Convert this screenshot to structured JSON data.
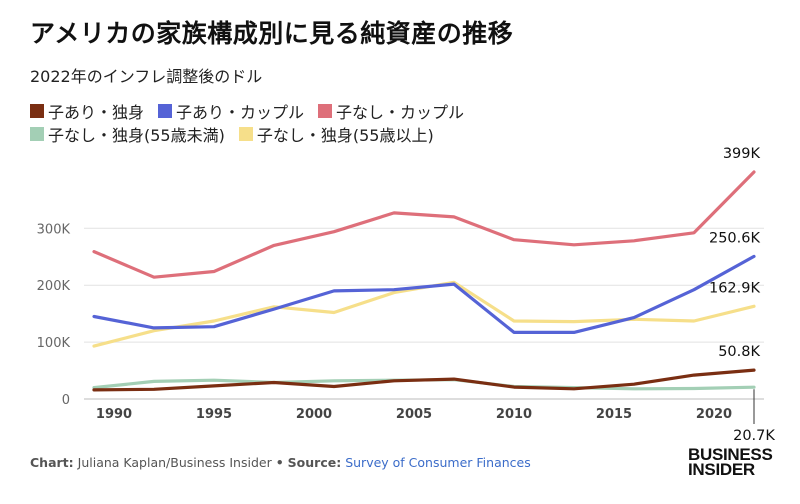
{
  "title": "アメリカの家族構成別に見る純資産の推移",
  "subtitle": "2022年のインフレ調整後のドル",
  "legend": [
    {
      "label": "子あり・独身",
      "color": "#7a2e12"
    },
    {
      "label": "子あり・カップル",
      "color": "#5563d6"
    },
    {
      "label": "子なし・カップル",
      "color": "#de6f7a"
    },
    {
      "label": "子なし・独身(55歳未満)",
      "color": "#a3cfb5"
    },
    {
      "label": "子なし・独身(55歳以上)",
      "color": "#f6df8a"
    }
  ],
  "chart_data": {
    "type": "line",
    "title": "アメリカの家族構成別に見る純資産の推移",
    "subtitle": "2022年のインフレ調整後のドル",
    "xlabel": "",
    "ylabel": "",
    "x": [
      1989,
      1992,
      1995,
      1998,
      2001,
      2004,
      2007,
      2010,
      2013,
      2016,
      2019,
      2022
    ],
    "xticks": [
      1990,
      1995,
      2000,
      2005,
      2010,
      2015,
      2020
    ],
    "xlim": [
      1988.5,
      2022.5
    ],
    "ylim": [
      0,
      420000
    ],
    "yticks": [
      0,
      100000,
      200000,
      300000
    ],
    "ytick_labels": [
      "0",
      "100K",
      "200K",
      "300K"
    ],
    "series": [
      {
        "name": "子なし・独身(55歳未満)",
        "color": "#a3cfb5",
        "values": [
          20000,
          31000,
          33000,
          29000,
          32000,
          33000,
          34000,
          22000,
          20000,
          18000,
          18500,
          20700
        ],
        "end_label": "20.7K"
      },
      {
        "name": "子あり・独身",
        "color": "#7a2e12",
        "values": [
          16000,
          17000,
          23000,
          29000,
          22000,
          32000,
          35000,
          21000,
          18000,
          26000,
          42000,
          50800
        ],
        "end_label": "50.8K"
      },
      {
        "name": "子なし・独身(55歳以上)",
        "color": "#f6df8a",
        "values": [
          93000,
          120000,
          137000,
          162000,
          152000,
          187000,
          205000,
          137000,
          136000,
          140000,
          137000,
          162900
        ],
        "end_label": "162.9K"
      },
      {
        "name": "子あり・カップル",
        "color": "#5563d6",
        "values": [
          145000,
          125000,
          127000,
          158000,
          190000,
          192000,
          202000,
          117000,
          117000,
          143000,
          192000,
          250600
        ],
        "end_label": "250.6K"
      },
      {
        "name": "子なし・カップル",
        "color": "#de6f7a",
        "values": [
          259000,
          214000,
          224000,
          270000,
          294000,
          327000,
          320000,
          280000,
          271000,
          278000,
          292000,
          399000
        ],
        "end_label": "399K"
      }
    ]
  },
  "footer": {
    "chart_label": "Chart:",
    "credit": "Juliana Kaplan/Business Insider",
    "bullet": "•",
    "source_label": "Source:",
    "source": "Survey of Consumer Finances"
  },
  "brand": {
    "line1": "BUSINESS",
    "line2": "INSIDER"
  }
}
